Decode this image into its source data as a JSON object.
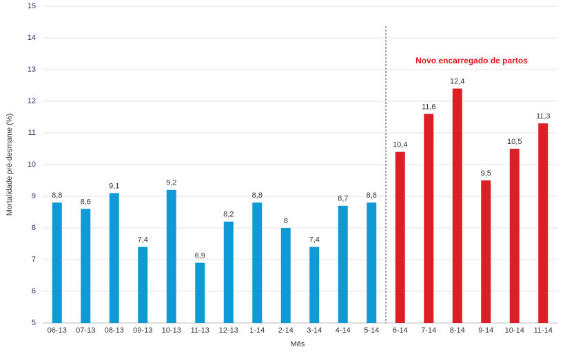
{
  "chart_data": {
    "type": "bar",
    "categories": [
      "06-13",
      "07-13",
      "08-13",
      "09-13",
      "10-13",
      "11-13",
      "12-13",
      "1-14",
      "2-14",
      "3-14",
      "4-14",
      "5-14",
      "6-14",
      "7-14",
      "8-14",
      "9-14",
      "10-14",
      "11-14"
    ],
    "values": [
      8.8,
      8.6,
      9.1,
      7.4,
      9.2,
      6.9,
      8.2,
      8.8,
      8,
      7.4,
      8.7,
      8.8,
      10.4,
      11.6,
      12.4,
      9.5,
      10.5,
      11.3
    ],
    "value_labels": [
      "8,8",
      "8,6",
      "9,1",
      "7,4",
      "9,2",
      "6,9",
      "8,2",
      "8,8",
      "8",
      "7,4",
      "8,7",
      "8,8",
      "10,4",
      "11,6",
      "12,4",
      "9,5",
      "10,5",
      "11,3"
    ],
    "colors": [
      "#0f9ad6",
      "#0f9ad6",
      "#0f9ad6",
      "#0f9ad6",
      "#0f9ad6",
      "#0f9ad6",
      "#0f9ad6",
      "#0f9ad6",
      "#0f9ad6",
      "#0f9ad6",
      "#0f9ad6",
      "#0f9ad6",
      "#db1f26",
      "#db1f26",
      "#db1f26",
      "#db1f26",
      "#db1f26",
      "#db1f26"
    ],
    "ylim": [
      5,
      15
    ],
    "yticks": [
      5,
      6,
      7,
      8,
      9,
      10,
      11,
      12,
      13,
      14,
      15
    ],
    "grid": true,
    "y_label": "Mortalidade pré-desmame (%)",
    "x_label": "Mês",
    "annotation": {
      "text": "Novo encarregado de partos",
      "color": "#e0161c"
    }
  }
}
